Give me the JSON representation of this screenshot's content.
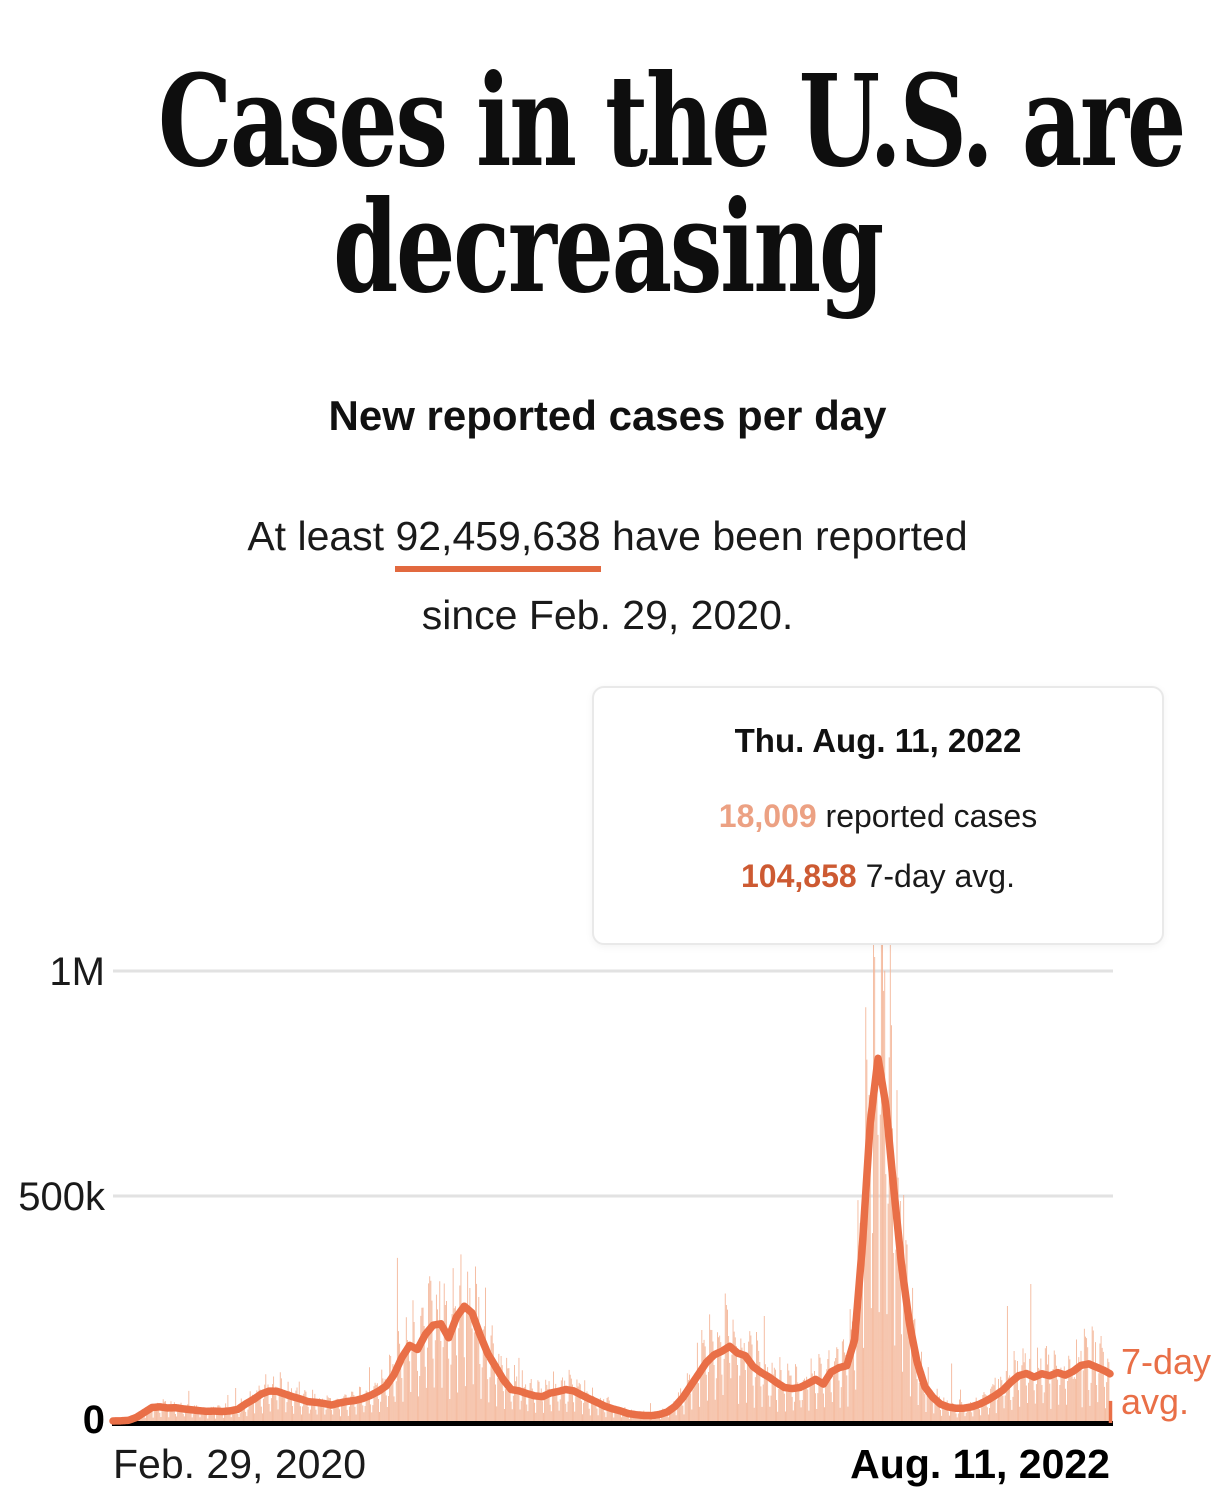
{
  "header": {
    "title_line1": "Cases in the U.S. are",
    "title_line2": "decreasing",
    "subtitle": "New reported cases per day",
    "summary_prefix": "At least ",
    "summary_total": "92,459,638",
    "summary_suffix": " have been reported",
    "summary_line2": "since Feb. 29, 2020."
  },
  "tooltip": {
    "date_label": "Thu. Aug. 11, 2022",
    "reported_value": "18,009",
    "reported_label": " reported cases",
    "avg_value": "104,858",
    "avg_label": " 7-day avg."
  },
  "colors": {
    "accent_line": "#e96f47",
    "daily_bars": "#f4b79a",
    "underline": "#e2693f",
    "tooltip_reported": "#eca183",
    "tooltip_avg": "#cd5a32",
    "gridline": "#e2e2e2",
    "axis": "#000000"
  },
  "chart_data": {
    "type": "area",
    "title": "New reported cases per day",
    "xlabel": "",
    "ylabel": "New reported cases per day",
    "ylim": [
      0,
      1000000
    ],
    "grid": "horizontal",
    "legend_position": "right-end",
    "x_axis": {
      "start_label": "Feb. 29, 2020",
      "end_label": "Aug. 11, 2022",
      "start_date": "2020-02-29",
      "end_date": "2022-08-11",
      "total_days": 894
    },
    "y_ticks": [
      {
        "label": "1M",
        "value": 1000000
      },
      {
        "label": "500k",
        "value": 500000
      },
      {
        "label": "0",
        "value": 0
      }
    ],
    "series_label": "7-day avg.",
    "series": [
      {
        "name": "7-day avg.",
        "type": "line",
        "unit": "thousands of cases per day",
        "start_date": "2020-02-29",
        "interval_days": 7,
        "values": [
          0.07,
          0.4,
          1.6,
          8,
          19,
          30,
          31.5,
          29,
          29.5,
          27,
          25,
          23,
          21.5,
          22,
          21,
          22.5,
          26,
          38,
          48,
          60,
          66.5,
          66,
          60,
          54,
          49,
          43,
          41.5,
          39,
          35.5,
          40,
          43.5,
          45.5,
          50,
          57,
          66,
          78,
          103,
          141,
          168,
          159,
          192,
          213,
          216,
          185,
          231,
          255,
          240,
          192,
          150,
          121,
          92,
          70,
          67,
          61,
          56,
          54,
          62,
          65.5,
          70,
          67,
          58,
          49.5,
          41.5,
          33,
          27,
          22.5,
          16.5,
          14,
          12.3,
          12,
          14.5,
          20,
          32.5,
          52,
          78,
          104,
          130,
          147,
          155,
          166,
          151,
          145,
          121,
          108,
          98,
          85.5,
          74.5,
          72,
          74.5,
          83,
          92.5,
          82,
          109,
          118.5,
          123,
          181,
          392,
          662,
          806,
          702,
          519,
          348,
          219,
          131,
          76,
          53,
          37.5,
          31,
          28.3,
          28.5,
          31.5,
          37.5,
          46,
          56.5,
          68.5,
          86,
          100.5,
          105.5,
          97.5,
          105,
          100.5,
          107.5,
          102,
          110.5,
          123.5,
          127,
          119.5,
          112
        ],
        "end_point": {
          "date": "2022-08-11",
          "value": 104.858
        }
      },
      {
        "name": "daily reported cases (bars)",
        "type": "bar",
        "last_point": {
          "date": "2022-08-11",
          "value": 18009
        }
      }
    ],
    "annotations": {
      "total_reported": "92,459,638",
      "since": "Feb. 29, 2020",
      "hover_date": "Thu. Aug. 11, 2022",
      "hover_reported": 18009,
      "hover_seven_day_avg": 104858
    }
  }
}
